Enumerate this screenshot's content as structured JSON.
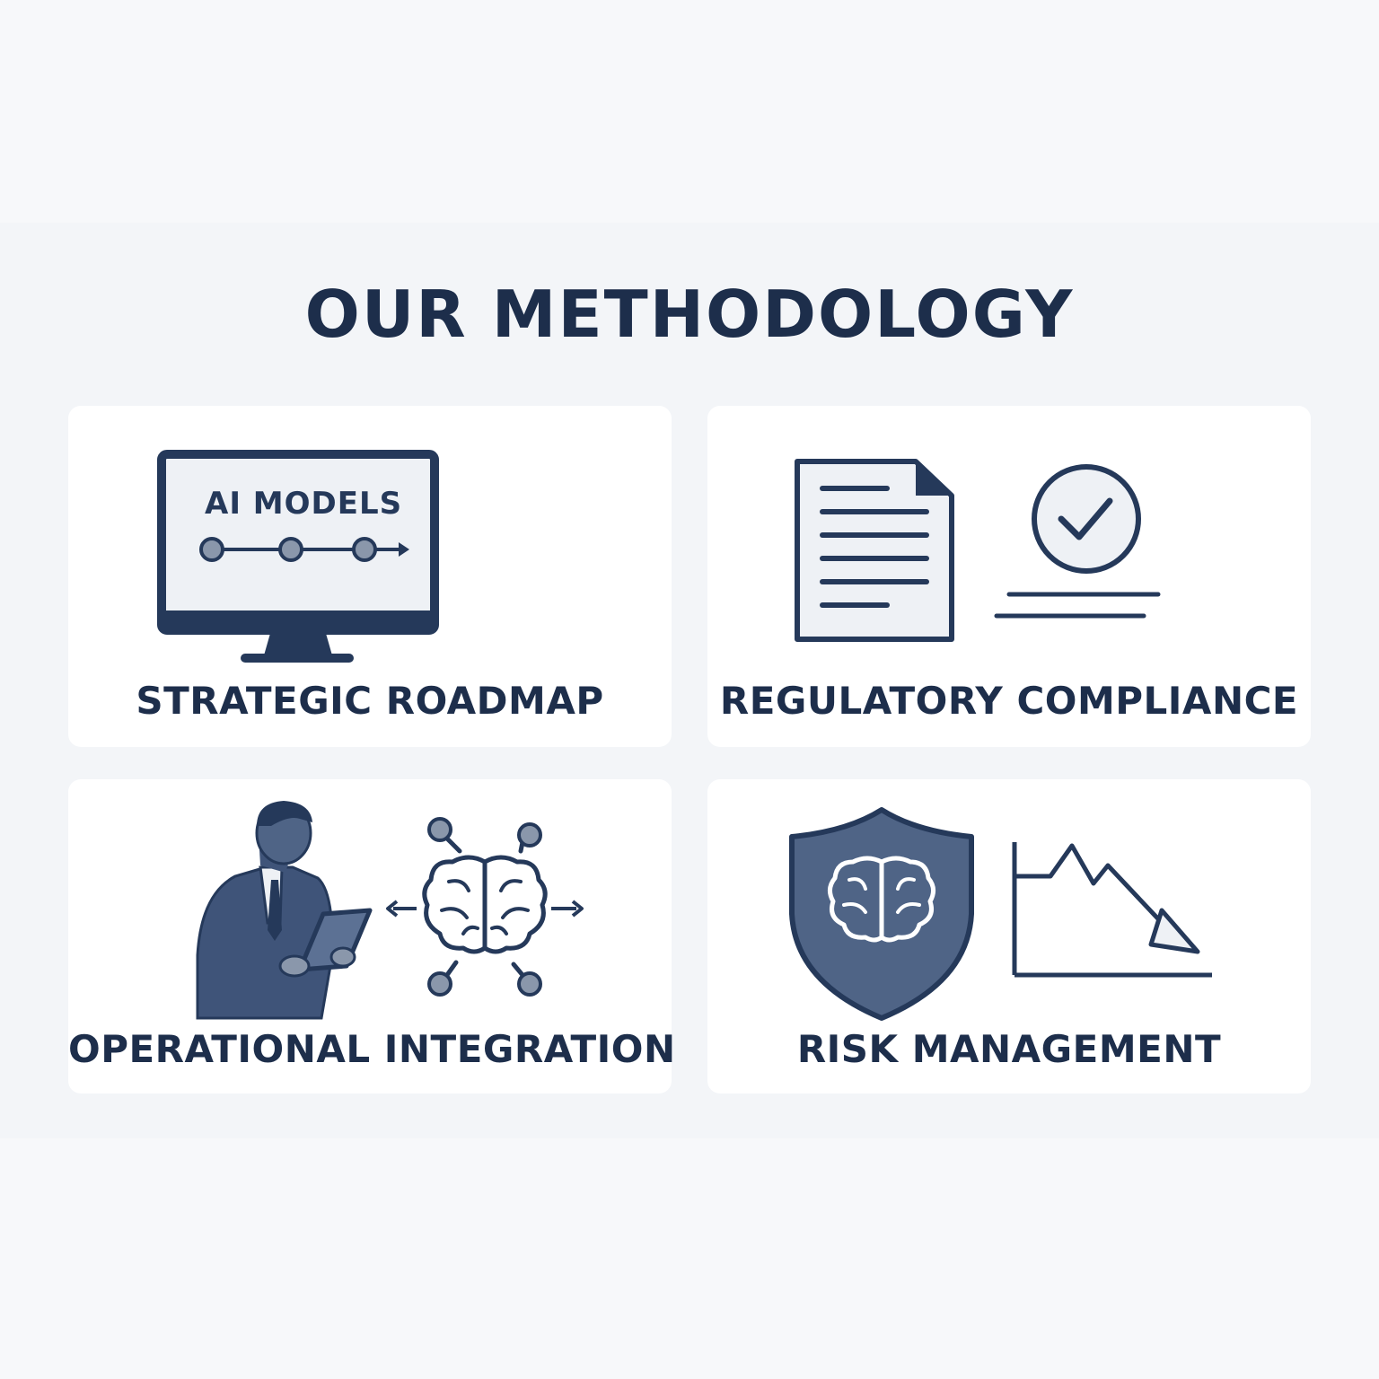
{
  "title": "OUR METHODOLOGY",
  "colors": {
    "navy": "#25395a",
    "slate_fill": "#4f6486",
    "screen_bg": "#eef1f5",
    "node_fill": "#8a97ab",
    "card_bg": "#ffffff",
    "page_bg": "#f7f8fa"
  },
  "cards": [
    {
      "label": "STRATEGIC ROADMAP",
      "icons": [
        "monitor-icon",
        "timeline-icon"
      ],
      "screen_text": "AI MODELS"
    },
    {
      "label": "REGULATORY COMPLIANCE",
      "icons": [
        "document-icon",
        "check-circle-icon"
      ]
    },
    {
      "label": "OPERATIONAL INTEGRATION",
      "icons": [
        "businessman-tablet-icon",
        "brain-network-icon"
      ]
    },
    {
      "label": "RISK MANAGEMENT",
      "icons": [
        "shield-brain-icon",
        "declining-chart-icon"
      ]
    }
  ]
}
